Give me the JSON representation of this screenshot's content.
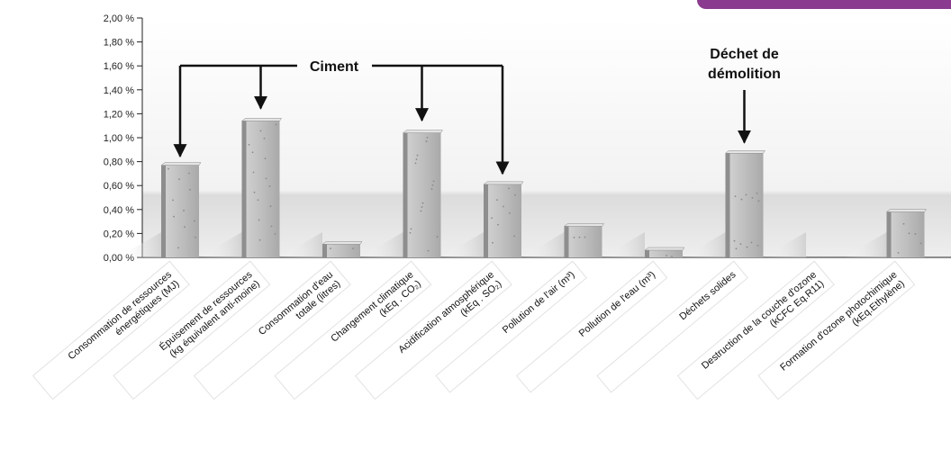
{
  "colors": {
    "accent": "#8a3a8f",
    "bar": "#b5b5b5",
    "text": "#111111",
    "grid": "#dddddd"
  },
  "chart_data": {
    "type": "bar",
    "title": "",
    "xlabel": "",
    "ylabel": "",
    "ylim": [
      0,
      2
    ],
    "y_ticks": [
      "0,00 %",
      "0,20 %",
      "0,40 %",
      "0,60 %",
      "0,80 %",
      "1,00 %",
      "1,20 %",
      "1,40 %",
      "1,60 %",
      "1,80 %",
      "2,00 %"
    ],
    "grid": false,
    "categories": [
      [
        "Consommation de ressources",
        "énergétiques (MJ)"
      ],
      [
        "Épuisement de ressources",
        "(kg équivalent anti-moine)"
      ],
      [
        "Consommation d'eau",
        "totale (litres)"
      ],
      [
        "Changement climatique",
        "(kEq . CO₂)"
      ],
      [
        "Acidification atmosphérique",
        "(kEq . SO₂)"
      ],
      [
        "Pollution de l'air (m³)"
      ],
      [
        "Pollution de l'eau (m³)"
      ],
      [
        "Déchets solides"
      ],
      [
        "Destruction de la couche d'ozone",
        "(kCFC Eq.R11)"
      ],
      [
        "Formation d'ozone photochimique",
        "(kEq.Ethylène)"
      ]
    ],
    "values": [
      0.77,
      1.14,
      0.11,
      1.04,
      0.61,
      0.26,
      0.06,
      0.87,
      0.0,
      0.38
    ],
    "annotations": [
      {
        "text": [
          "Ciment"
        ],
        "targets": [
          0,
          1,
          3,
          4
        ]
      },
      {
        "text": [
          "Déchet de",
          "démolition"
        ],
        "targets": [
          7
        ]
      }
    ]
  }
}
